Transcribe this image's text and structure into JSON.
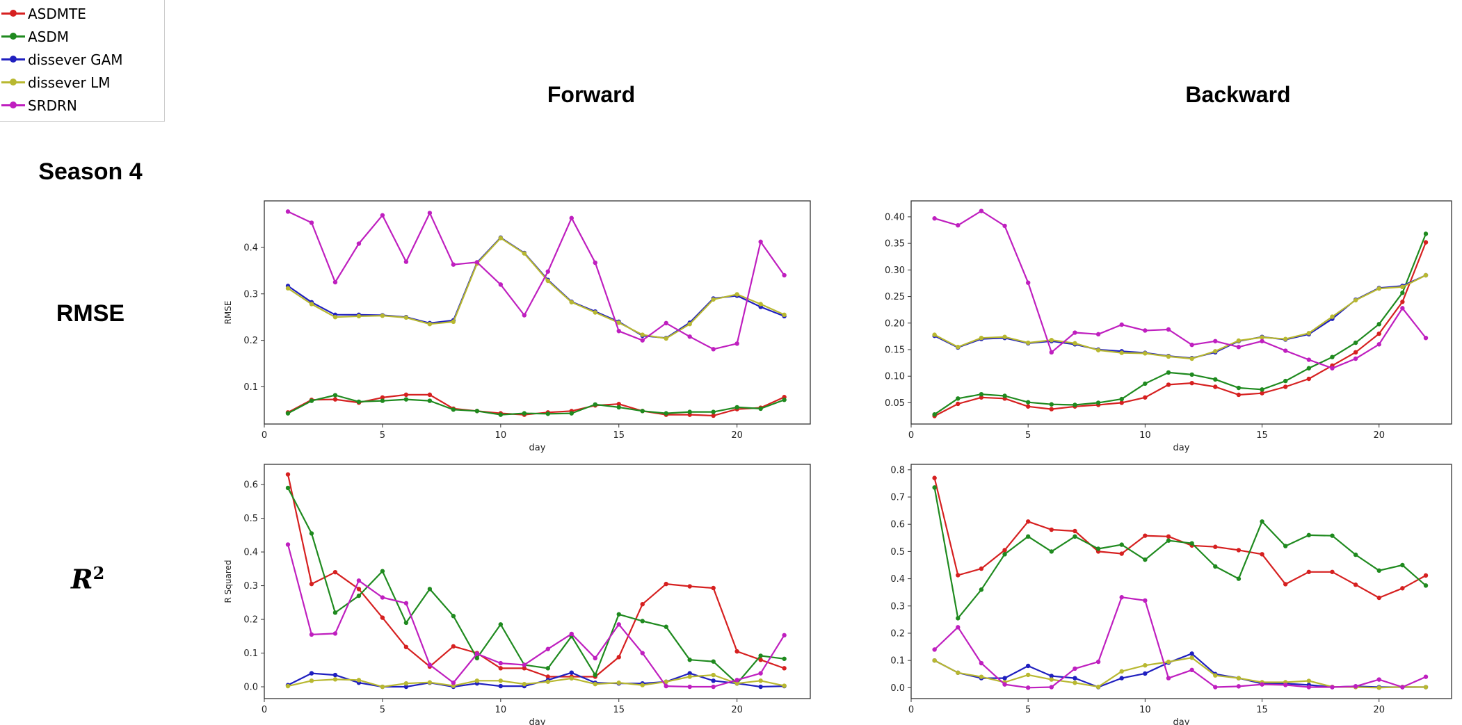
{
  "figure": {
    "row_label_season": "Season 4",
    "col_forward": "Forward",
    "col_backward": "Backward",
    "row_rmse": "RMSE",
    "row_r2": "R",
    "row_r2_sup": "2"
  },
  "legend": [
    {
      "name": "ASDMTE",
      "color": "#d62020"
    },
    {
      "name": "ASDM",
      "color": "#1f8a1f"
    },
    {
      "name": "dissever GAM",
      "color": "#1f1fbf"
    },
    {
      "name": "dissever LM",
      "color": "#b8b830"
    },
    {
      "name": "SRDRN",
      "color": "#bf1fbf"
    }
  ],
  "chart_data": [
    {
      "id": "forward-rmse",
      "type": "line",
      "xlabel": "day",
      "ylabel": "RMSE",
      "xlim": [
        0,
        23.1
      ],
      "ylim": [
        0.02,
        0.5
      ],
      "xticks": [
        0,
        5,
        10,
        15,
        20
      ],
      "yticks": [
        0.1,
        0.2,
        0.3,
        0.4
      ],
      "ytick_labels": [
        "0.1",
        "0.2",
        "0.3",
        "0.4"
      ],
      "x": [
        1,
        2,
        3,
        4,
        5,
        6,
        7,
        8,
        9,
        10,
        11,
        12,
        13,
        14,
        15,
        16,
        17,
        18,
        19,
        20,
        21,
        22
      ],
      "series": [
        {
          "name": "ASDMTE",
          "values": [
            0.045,
            0.072,
            0.073,
            0.066,
            0.077,
            0.083,
            0.083,
            0.053,
            0.048,
            0.043,
            0.04,
            0.045,
            0.048,
            0.06,
            0.063,
            0.048,
            0.04,
            0.04,
            0.038,
            0.052,
            0.055,
            0.078
          ]
        },
        {
          "name": "ASDM",
          "values": [
            0.043,
            0.07,
            0.082,
            0.068,
            0.07,
            0.073,
            0.07,
            0.051,
            0.048,
            0.04,
            0.043,
            0.042,
            0.043,
            0.062,
            0.056,
            0.048,
            0.043,
            0.046,
            0.046,
            0.056,
            0.053,
            0.072
          ]
        },
        {
          "name": "dissever GAM",
          "values": [
            0.317,
            0.282,
            0.255,
            0.255,
            0.254,
            0.25,
            0.237,
            0.243,
            0.367,
            0.421,
            0.388,
            0.33,
            0.283,
            0.262,
            0.24,
            0.21,
            0.205,
            0.238,
            0.29,
            0.296,
            0.272,
            0.252
          ]
        },
        {
          "name": "dissever LM",
          "values": [
            0.312,
            0.278,
            0.25,
            0.252,
            0.253,
            0.249,
            0.235,
            0.24,
            0.365,
            0.42,
            0.387,
            0.328,
            0.282,
            0.26,
            0.238,
            0.212,
            0.204,
            0.235,
            0.288,
            0.299,
            0.278,
            0.255
          ]
        },
        {
          "name": "SRDRN",
          "values": [
            0.477,
            0.453,
            0.325,
            0.408,
            0.469,
            0.369,
            0.474,
            0.363,
            0.368,
            0.32,
            0.254,
            0.348,
            0.463,
            0.367,
            0.22,
            0.2,
            0.237,
            0.208,
            0.181,
            0.193,
            0.412,
            0.34
          ]
        }
      ]
    },
    {
      "id": "backward-rmse",
      "type": "line",
      "xlabel": "day",
      "ylabel": "",
      "xlim": [
        0,
        23.1
      ],
      "ylim": [
        0.01,
        0.43
      ],
      "xticks": [
        0,
        5,
        10,
        15,
        20
      ],
      "yticks": [
        0.05,
        0.1,
        0.15,
        0.2,
        0.25,
        0.3,
        0.35,
        0.4
      ],
      "ytick_labels": [
        "0.05",
        "0.10",
        "0.15",
        "0.20",
        "0.25",
        "0.30",
        "0.35",
        "0.40"
      ],
      "x": [
        1,
        2,
        3,
        4,
        5,
        6,
        7,
        8,
        9,
        10,
        11,
        12,
        13,
        14,
        15,
        16,
        17,
        18,
        19,
        20,
        21,
        22
      ],
      "series": [
        {
          "name": "ASDMTE",
          "values": [
            0.025,
            0.048,
            0.06,
            0.058,
            0.043,
            0.038,
            0.043,
            0.046,
            0.05,
            0.06,
            0.084,
            0.087,
            0.08,
            0.065,
            0.068,
            0.08,
            0.095,
            0.12,
            0.145,
            0.18,
            0.24,
            0.352
          ]
        },
        {
          "name": "ASDM",
          "values": [
            0.028,
            0.058,
            0.066,
            0.063,
            0.051,
            0.047,
            0.046,
            0.05,
            0.057,
            0.086,
            0.107,
            0.103,
            0.094,
            0.078,
            0.075,
            0.091,
            0.115,
            0.136,
            0.163,
            0.198,
            0.257,
            0.368
          ]
        },
        {
          "name": "dissever GAM",
          "values": [
            0.176,
            0.154,
            0.17,
            0.172,
            0.162,
            0.166,
            0.16,
            0.15,
            0.147,
            0.144,
            0.138,
            0.134,
            0.145,
            0.166,
            0.174,
            0.169,
            0.179,
            0.208,
            0.244,
            0.266,
            0.27,
            0.29
          ]
        },
        {
          "name": "dissever LM",
          "values": [
            0.178,
            0.155,
            0.172,
            0.174,
            0.163,
            0.168,
            0.162,
            0.149,
            0.144,
            0.143,
            0.137,
            0.133,
            0.147,
            0.167,
            0.173,
            0.17,
            0.181,
            0.212,
            0.243,
            0.265,
            0.268,
            0.29
          ]
        },
        {
          "name": "SRDRN",
          "values": [
            0.397,
            0.384,
            0.411,
            0.383,
            0.276,
            0.145,
            0.182,
            0.179,
            0.197,
            0.186,
            0.188,
            0.159,
            0.166,
            0.155,
            0.166,
            0.148,
            0.131,
            0.115,
            0.133,
            0.16,
            0.228,
            0.172
          ]
        }
      ]
    },
    {
      "id": "forward-r2",
      "type": "line",
      "xlabel": "day",
      "ylabel": "R Squared",
      "xlim": [
        0,
        23.1
      ],
      "ylim": [
        -0.035,
        0.66
      ],
      "xticks": [
        0,
        5,
        10,
        15,
        20
      ],
      "yticks": [
        0.0,
        0.1,
        0.2,
        0.3,
        0.4,
        0.5,
        0.6
      ],
      "ytick_labels": [
        "0.0",
        "0.1",
        "0.2",
        "0.3",
        "0.4",
        "0.5",
        "0.6"
      ],
      "x": [
        1,
        2,
        3,
        4,
        5,
        6,
        7,
        8,
        9,
        10,
        11,
        12,
        13,
        14,
        15,
        16,
        17,
        18,
        19,
        20,
        21,
        22
      ],
      "series": [
        {
          "name": "ASDMTE",
          "values": [
            0.63,
            0.305,
            0.34,
            0.29,
            0.205,
            0.118,
            0.06,
            0.12,
            0.1,
            0.055,
            0.055,
            0.03,
            0.03,
            0.03,
            0.088,
            0.245,
            0.305,
            0.298,
            0.293,
            0.105,
            0.08,
            0.055
          ]
        },
        {
          "name": "ASDM",
          "values": [
            0.59,
            0.455,
            0.22,
            0.27,
            0.343,
            0.19,
            0.29,
            0.21,
            0.085,
            0.185,
            0.065,
            0.055,
            0.15,
            0.035,
            0.215,
            0.195,
            0.178,
            0.08,
            0.075,
            0.01,
            0.092,
            0.083
          ]
        },
        {
          "name": "dissever GAM",
          "values": [
            0.005,
            0.04,
            0.035,
            0.012,
            0.0,
            0.0,
            0.012,
            0.0,
            0.01,
            0.002,
            0.002,
            0.02,
            0.042,
            0.012,
            0.01,
            0.01,
            0.015,
            0.04,
            0.018,
            0.01,
            0.0,
            0.002
          ]
        },
        {
          "name": "dissever LM",
          "values": [
            0.002,
            0.018,
            0.022,
            0.02,
            0.0,
            0.01,
            0.013,
            0.003,
            0.018,
            0.018,
            0.008,
            0.015,
            0.025,
            0.008,
            0.012,
            0.005,
            0.015,
            0.03,
            0.035,
            0.01,
            0.018,
            0.003
          ]
        },
        {
          "name": "SRDRN",
          "values": [
            0.422,
            0.155,
            0.158,
            0.315,
            0.265,
            0.248,
            0.065,
            0.012,
            0.098,
            0.07,
            0.065,
            0.112,
            0.157,
            0.085,
            0.185,
            0.1,
            0.002,
            0.0,
            0.0,
            0.02,
            0.04,
            0.153
          ]
        }
      ]
    },
    {
      "id": "backward-r2",
      "type": "line",
      "xlabel": "day",
      "ylabel": "",
      "xlim": [
        0,
        23.1
      ],
      "ylim": [
        -0.04,
        0.82
      ],
      "xticks": [
        0,
        5,
        10,
        15,
        20
      ],
      "yticks": [
        0.0,
        0.1,
        0.2,
        0.3,
        0.4,
        0.5,
        0.6,
        0.7,
        0.8
      ],
      "ytick_labels": [
        "0.0",
        "0.1",
        "0.2",
        "0.3",
        "0.4",
        "0.5",
        "0.6",
        "0.7",
        "0.8"
      ],
      "x": [
        1,
        2,
        3,
        4,
        5,
        6,
        7,
        8,
        9,
        10,
        11,
        12,
        13,
        14,
        15,
        16,
        17,
        18,
        19,
        20,
        21,
        22
      ],
      "series": [
        {
          "name": "ASDMTE",
          "values": [
            0.77,
            0.413,
            0.437,
            0.505,
            0.61,
            0.58,
            0.575,
            0.5,
            0.492,
            0.558,
            0.555,
            0.522,
            0.517,
            0.505,
            0.49,
            0.38,
            0.425,
            0.425,
            0.378,
            0.33,
            0.365,
            0.412
          ]
        },
        {
          "name": "ASDM",
          "values": [
            0.735,
            0.255,
            0.36,
            0.49,
            0.555,
            0.5,
            0.555,
            0.51,
            0.525,
            0.47,
            0.54,
            0.53,
            0.445,
            0.4,
            0.61,
            0.52,
            0.56,
            0.558,
            0.488,
            0.43,
            0.45,
            0.375
          ]
        },
        {
          "name": "dissever GAM",
          "values": [
            0.1,
            0.055,
            0.035,
            0.035,
            0.08,
            0.043,
            0.035,
            0.002,
            0.035,
            0.052,
            0.092,
            0.125,
            0.05,
            0.035,
            0.015,
            0.015,
            0.01,
            0.002,
            0.005,
            0.002,
            0.002,
            0.002
          ]
        },
        {
          "name": "dissever LM",
          "values": [
            0.1,
            0.055,
            0.04,
            0.02,
            0.047,
            0.03,
            0.018,
            0.003,
            0.06,
            0.082,
            0.095,
            0.11,
            0.045,
            0.035,
            0.02,
            0.02,
            0.025,
            0.003,
            0.002,
            0.0,
            0.003,
            0.002
          ]
        },
        {
          "name": "SRDRN",
          "values": [
            0.14,
            0.222,
            0.09,
            0.012,
            0.0,
            0.002,
            0.07,
            0.095,
            0.332,
            0.32,
            0.035,
            0.065,
            0.002,
            0.005,
            0.012,
            0.01,
            0.002,
            0.002,
            0.005,
            0.03,
            0.002,
            0.04
          ]
        }
      ]
    }
  ]
}
